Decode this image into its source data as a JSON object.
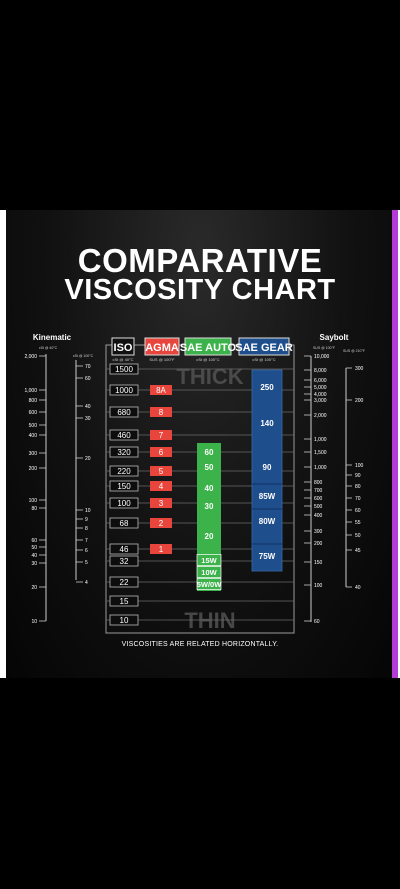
{
  "chart_data": {
    "type": "table",
    "title": "COMPARATIVE",
    "title_line2": "VISCOSITY CHART",
    "footer": "VISCOSITIES ARE RELATED HORIZONTALLY.",
    "thick_label": "THICK",
    "thin_label": "THIN",
    "left_axis": {
      "title": "Kinematic",
      "sub_outer": "cSt @ 40°C",
      "sub_inner": "cSt @ 100°C",
      "outer_ticks": [
        "2,000",
        "1,000",
        "800",
        "600",
        "500",
        "400",
        "300",
        "200",
        "100",
        "80",
        "60",
        "50",
        "40",
        "30",
        "20",
        "10"
      ],
      "inner_ticks": [
        "70",
        "60",
        "40",
        "30",
        "20",
        "10",
        "9",
        "8",
        "7",
        "6",
        "5",
        "4"
      ]
    },
    "right_axis": {
      "title": "Saybolt",
      "sub_inner": "SUS @ 100°F",
      "sub_outer": "SUS @ 210°F",
      "inner_ticks": [
        "10,000",
        "8,000",
        "6,000",
        "5,000",
        "4,000",
        "3,000",
        "2,000",
        "1,000",
        "1,500",
        "1,000",
        "800",
        "700",
        "600",
        "500",
        "400",
        "300",
        "200",
        "150",
        "100",
        "60"
      ],
      "outer_ticks": [
        "300",
        "200",
        "100",
        "90",
        "80",
        "70",
        "60",
        "55",
        "50",
        "45",
        "40"
      ]
    },
    "columns": [
      {
        "name": "ISO",
        "sub": "cSt @ 40°C",
        "color": "#222222",
        "values": [
          "1500",
          "1000",
          "680",
          "460",
          "320",
          "220",
          "150",
          "100",
          "68",
          "46",
          "32",
          "22",
          "15",
          "10"
        ]
      },
      {
        "name": "AGMA",
        "sub": "SUS @ 100°F",
        "color": "#e8453c",
        "values": [
          "8A",
          "8",
          "7",
          "6",
          "5",
          "4",
          "3",
          "2",
          "1"
        ]
      },
      {
        "name": "SAE AUTO",
        "sub": "cSt @ 100°C",
        "color": "#3bb34a",
        "values": [
          "60",
          "50",
          "40",
          "30",
          "20",
          "15W",
          "10W",
          "5W/0W"
        ]
      },
      {
        "name": "SAE GEAR",
        "sub": "cSt @ 100°C",
        "color": "#1f4e8c",
        "values": [
          "250",
          "140",
          "90",
          "85W",
          "80W",
          "75W"
        ]
      }
    ]
  },
  "colors": {
    "iso": "#ffffff",
    "agma": "#e8453c",
    "auto": "#3bb34a",
    "gear": "#1f4e8c",
    "accent": "#b43bd6"
  }
}
